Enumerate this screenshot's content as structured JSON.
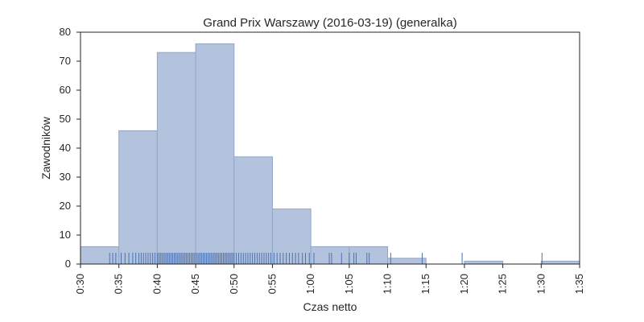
{
  "chart_data": {
    "type": "bar",
    "title": "Grand Prix Warszawy (2016-03-19) (generalka)",
    "xlabel": "Czas netto",
    "ylabel": "Zawodników",
    "x_unit": "minutes",
    "xlim": [
      30,
      95
    ],
    "ylim": [
      0,
      80
    ],
    "x_ticks": [
      {
        "value": 30,
        "label": "0:30"
      },
      {
        "value": 35,
        "label": "0:35"
      },
      {
        "value": 40,
        "label": "0:40"
      },
      {
        "value": 45,
        "label": "0:45"
      },
      {
        "value": 50,
        "label": "0:50"
      },
      {
        "value": 55,
        "label": "0:55"
      },
      {
        "value": 60,
        "label": "1:00"
      },
      {
        "value": 65,
        "label": "1:05"
      },
      {
        "value": 70,
        "label": "1:10"
      },
      {
        "value": 75,
        "label": "1:15"
      },
      {
        "value": 80,
        "label": "1:20"
      },
      {
        "value": 85,
        "label": "1:25"
      },
      {
        "value": 90,
        "label": "1:30"
      },
      {
        "value": 95,
        "label": "1:35"
      }
    ],
    "y_ticks": [
      0,
      10,
      20,
      30,
      40,
      50,
      60,
      70,
      80
    ],
    "bins": [
      {
        "start": 30,
        "end": 35,
        "count": 6
      },
      {
        "start": 35,
        "end": 40,
        "count": 46
      },
      {
        "start": 40,
        "end": 45,
        "count": 73
      },
      {
        "start": 45,
        "end": 50,
        "count": 76
      },
      {
        "start": 50,
        "end": 55,
        "count": 37
      },
      {
        "start": 55,
        "end": 60,
        "count": 19
      },
      {
        "start": 60,
        "end": 65,
        "count": 6
      },
      {
        "start": 65,
        "end": 70,
        "count": 6
      },
      {
        "start": 70,
        "end": 75,
        "count": 2
      },
      {
        "start": 75,
        "end": 80,
        "count": 0
      },
      {
        "start": 80,
        "end": 85,
        "count": 1
      },
      {
        "start": 85,
        "end": 90,
        "count": 0
      },
      {
        "start": 90,
        "end": 95,
        "count": 1
      }
    ],
    "rug_values": [
      33.8,
      34.2,
      34.6,
      35.3,
      35.8,
      36.3,
      36.8,
      37.2,
      37.6,
      37.9,
      38.2,
      38.5,
      38.8,
      39.1,
      39.4,
      39.7,
      40.0,
      40.2,
      40.4,
      40.6,
      40.8,
      41.0,
      41.2,
      41.4,
      41.6,
      41.8,
      42.0,
      42.2,
      42.4,
      42.6,
      42.8,
      43.0,
      43.2,
      43.4,
      43.6,
      43.8,
      44.0,
      44.2,
      44.4,
      44.6,
      44.8,
      45.0,
      45.2,
      45.4,
      45.6,
      45.8,
      46.0,
      46.2,
      46.4,
      46.6,
      46.8,
      47.0,
      47.2,
      47.4,
      47.6,
      47.8,
      48.0,
      48.2,
      48.4,
      48.6,
      48.8,
      49.0,
      49.2,
      49.4,
      49.6,
      49.8,
      50.0,
      50.3,
      50.6,
      50.9,
      51.2,
      51.5,
      51.8,
      52.1,
      52.4,
      52.7,
      53.0,
      53.3,
      53.6,
      53.9,
      54.2,
      54.5,
      54.8,
      55.2,
      55.6,
      56.0,
      56.4,
      56.8,
      57.2,
      57.6,
      58.0,
      58.4,
      58.9,
      59.3,
      59.8,
      60.4,
      62.4,
      62.7,
      64.0,
      65.0,
      65.6,
      65.9,
      67.3,
      67.6,
      70.4,
      74.5,
      79.7,
      90.1
    ],
    "colors": {
      "bar_fill": "#b3c3dd",
      "bar_edge": "#94a6c4",
      "rug": "#4c72b0",
      "axes": "#262626"
    },
    "grid": false
  }
}
